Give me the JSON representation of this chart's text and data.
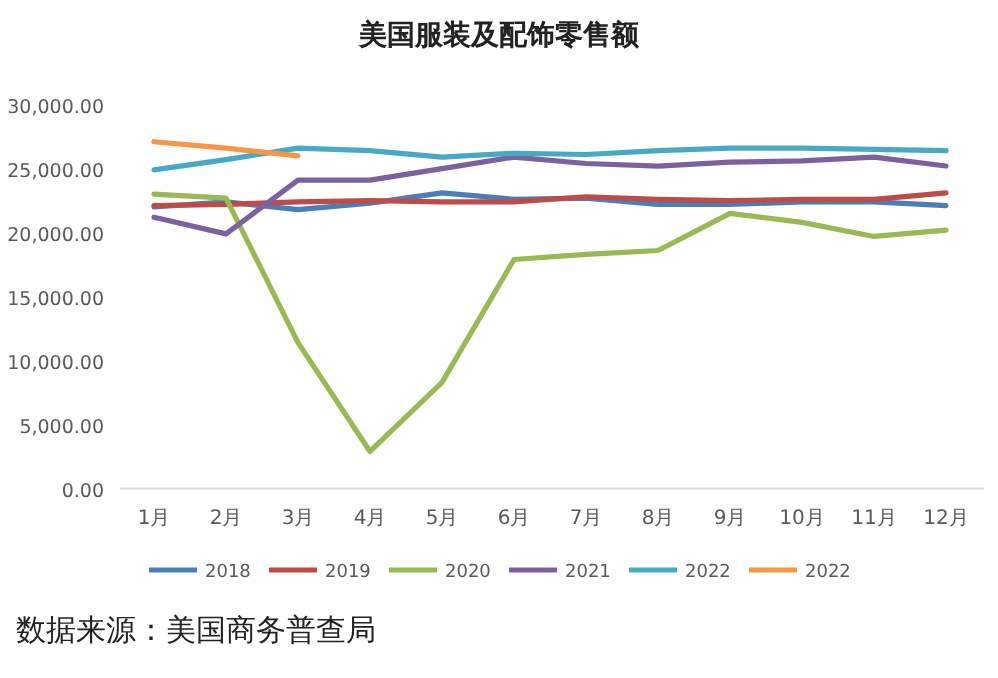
{
  "chart_data": {
    "type": "line",
    "title": "美国服装及配饰零售额",
    "categories": [
      "1月",
      "2月",
      "3月",
      "4月",
      "5月",
      "6月",
      "7月",
      "8月",
      "9月",
      "10月",
      "11月",
      "12月"
    ],
    "ylim": [
      0,
      30000
    ],
    "yticks": [
      {
        "value": 0,
        "label": "0.00"
      },
      {
        "value": 5000,
        "label": "5,000.00"
      },
      {
        "value": 10000,
        "label": "10,000.00"
      },
      {
        "value": 15000,
        "label": "15,000.00"
      },
      {
        "value": 20000,
        "label": "20,000.00"
      },
      {
        "value": 25000,
        "label": "25,000.00"
      },
      {
        "value": 30000,
        "label": "30,000.00"
      }
    ],
    "grid": false,
    "legend": "bottom",
    "marker": "none",
    "line_style": "solid",
    "series": [
      {
        "name": "2018",
        "color": "#4a7ebb",
        "values": [
          22000,
          22400,
          21800,
          22300,
          23100,
          22600,
          22700,
          22200,
          22200,
          22400,
          22400,
          22100
        ]
      },
      {
        "name": "2019",
        "color": "#be4b48",
        "values": [
          22100,
          22200,
          22400,
          22500,
          22400,
          22400,
          22800,
          22600,
          22500,
          22600,
          22600,
          23100
        ]
      },
      {
        "name": "2020",
        "color": "#98b954",
        "values": [
          23000,
          22700,
          11400,
          2900,
          8300,
          17900,
          18300,
          18600,
          21500,
          20800,
          19700,
          20200
        ]
      },
      {
        "name": "2021",
        "color": "#7d60a0",
        "values": [
          21200,
          19900,
          24100,
          24100,
          25000,
          25900,
          25400,
          25200,
          25500,
          25600,
          25900,
          25200
        ]
      },
      {
        "name": "2022",
        "color": "#46aac5",
        "values": [
          24900,
          25700,
          26600,
          26400,
          25900,
          26200,
          26100,
          26400,
          26600,
          26600,
          26500,
          26400
        ]
      },
      {
        "name": "2022",
        "color": "#f79646",
        "values": [
          27100,
          26600,
          26000,
          null,
          null,
          null,
          null,
          null,
          null,
          null,
          null,
          null
        ]
      }
    ],
    "annotations": [
      "数据来源：美国商务普查局"
    ]
  }
}
